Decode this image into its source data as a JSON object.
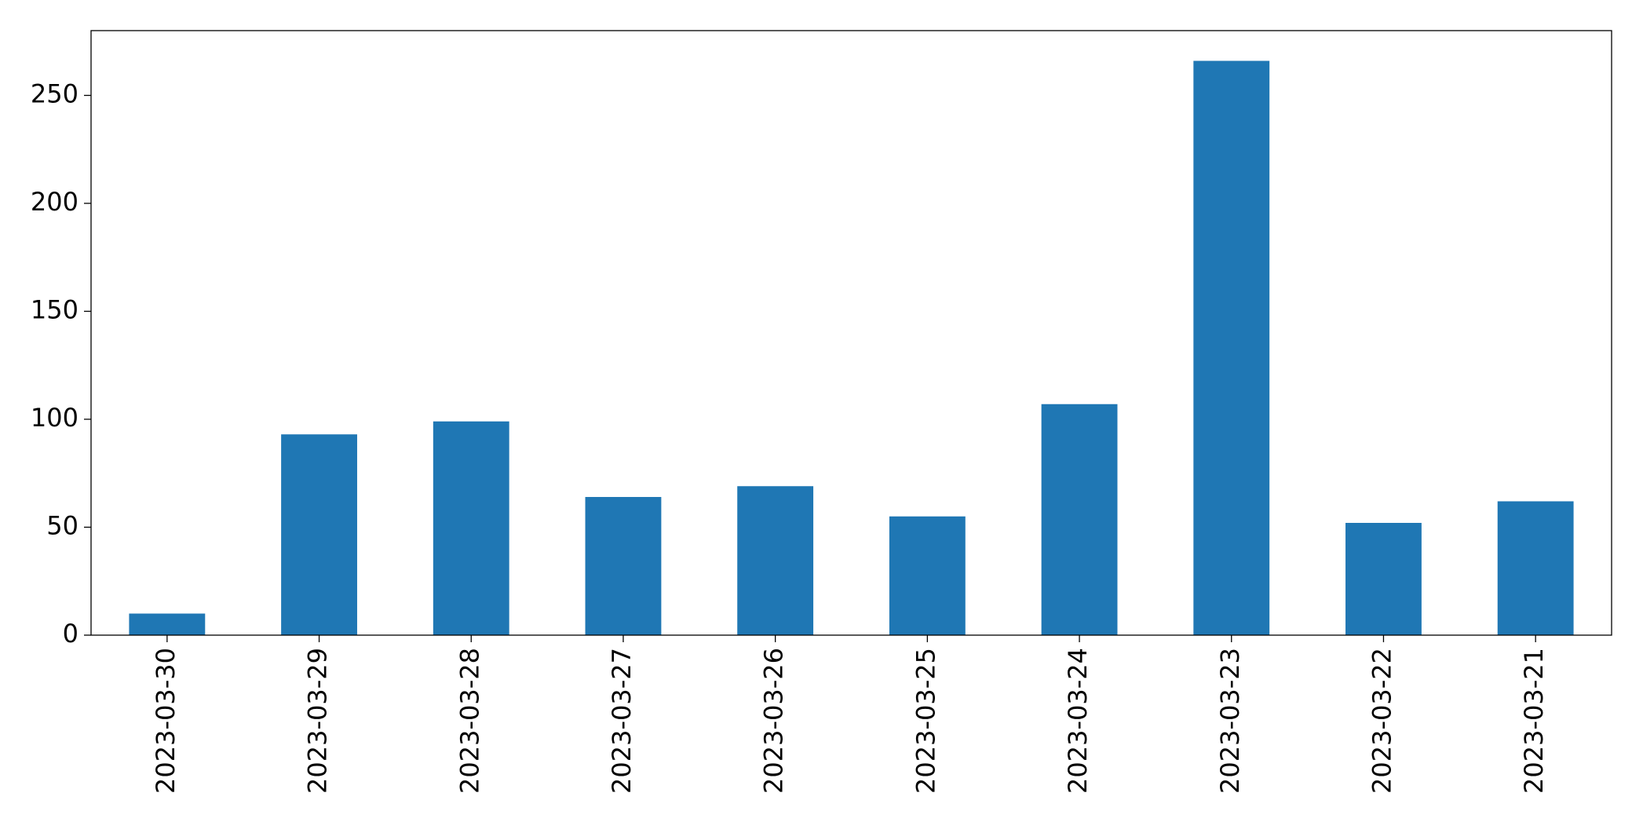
{
  "chart_data": {
    "type": "bar",
    "categories": [
      "2023-03-30",
      "2023-03-29",
      "2023-03-28",
      "2023-03-27",
      "2023-03-26",
      "2023-03-25",
      "2023-03-24",
      "2023-03-23",
      "2023-03-22",
      "2023-03-21"
    ],
    "values": [
      10,
      93,
      99,
      64,
      69,
      55,
      107,
      266,
      52,
      62
    ],
    "color": "#1f77b4",
    "ylim": [
      0,
      280
    ],
    "yticks": [
      0,
      50,
      100,
      150,
      200,
      250
    ],
    "grid": false
  }
}
